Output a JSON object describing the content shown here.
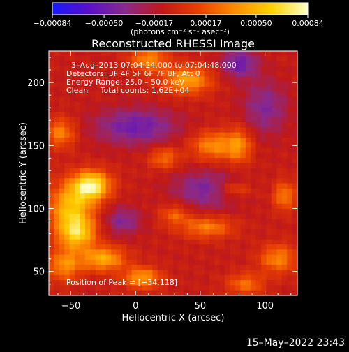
{
  "chart_data": {
    "type": "heatmap",
    "title": "Reconstructed RHESSI Image",
    "xlabel": "Heliocentric X (arcsec)",
    "ylabel": "Heliocentric Y (arcsec)",
    "xlim": [
      -67,
      125
    ],
    "ylim": [
      31,
      225
    ],
    "x_ticks": [
      -50,
      0,
      50,
      100
    ],
    "x_tick_labels": [
      "−50",
      "0",
      "50",
      "100"
    ],
    "y_ticks": [
      50,
      100,
      150,
      200
    ],
    "y_tick_labels": [
      "50",
      "100",
      "150",
      "200"
    ],
    "colorbar": {
      "range": [
        -0.00084,
        0.00084
      ],
      "ticks": [
        -0.00084,
        -0.0005,
        -0.00017,
        0.00017,
        0.0005,
        0.00084
      ],
      "tick_labels": [
        "−0.00084",
        "−0.00050",
        "−0.00017",
        "0.00017",
        "0.00050",
        "0.00084"
      ],
      "units": "(photons cm⁻² s⁻¹ asec⁻²)",
      "colors": [
        "#1818ff",
        "#5a10c8",
        "#8a2a8a",
        "#c01818",
        "#e84000",
        "#ff8c00",
        "#ffd000",
        "#ffffcc"
      ]
    },
    "annotations": [
      "3–Aug–2013 07:04:24.000 to 07:04:48.000",
      "Detectors: 3F 4F 5F 6F 7F 8F, Att 0",
      "Energy Range: 25.0 – 50.0 keV",
      "Clean     Total counts: 1.62E+04"
    ],
    "peak_label": "Position of Peak = [−34,118]",
    "peak": [
      -34,
      118
    ],
    "intensity_sources": [
      {
        "x": -34,
        "y": 118,
        "amp": 0.00084,
        "sx": 10,
        "sy": 8
      },
      {
        "x": -50,
        "y": 100,
        "amp": 0.00062,
        "sx": 12,
        "sy": 14
      },
      {
        "x": -45,
        "y": 80,
        "amp": 0.00058,
        "sx": 10,
        "sy": 9
      },
      {
        "x": -25,
        "y": 60,
        "amp": 0.00055,
        "sx": 12,
        "sy": 7
      },
      {
        "x": 5,
        "y": 45,
        "amp": 0.0005,
        "sx": 10,
        "sy": 6
      },
      {
        "x": -58,
        "y": 160,
        "amp": 0.00042,
        "sx": 8,
        "sy": 8
      },
      {
        "x": -55,
        "y": 55,
        "amp": 0.00045,
        "sx": 9,
        "sy": 9
      },
      {
        "x": 40,
        "y": 202,
        "amp": 0.00052,
        "sx": 13,
        "sy": 8
      },
      {
        "x": 10,
        "y": 218,
        "amp": 0.00045,
        "sx": 10,
        "sy": 7
      },
      {
        "x": 60,
        "y": 150,
        "amp": 0.00045,
        "sx": 12,
        "sy": 8
      },
      {
        "x": 80,
        "y": 150,
        "amp": 0.0004,
        "sx": 7,
        "sy": 10
      },
      {
        "x": 75,
        "y": 115,
        "amp": 0.0003,
        "sx": 10,
        "sy": 5
      },
      {
        "x": 55,
        "y": 85,
        "amp": 0.0004,
        "sx": 14,
        "sy": 6
      },
      {
        "x": 115,
        "y": 110,
        "amp": 0.0004,
        "sx": 6,
        "sy": 8
      },
      {
        "x": 110,
        "y": 60,
        "amp": 0.00042,
        "sx": 10,
        "sy": 8
      },
      {
        "x": 85,
        "y": 40,
        "amp": 0.00035,
        "sx": 10,
        "sy": 6
      },
      {
        "x": 22,
        "y": 140,
        "amp": 0.00035,
        "sx": 8,
        "sy": 6
      },
      {
        "x": 30,
        "y": 95,
        "amp": 0.0003,
        "sx": 8,
        "sy": 6
      },
      {
        "x": 80,
        "y": 215,
        "amp": -0.0004,
        "sx": 10,
        "sy": 8
      },
      {
        "x": 0,
        "y": 165,
        "amp": -0.0004,
        "sx": 22,
        "sy": 10
      },
      {
        "x": 55,
        "y": 115,
        "amp": -0.00035,
        "sx": 18,
        "sy": 10
      },
      {
        "x": 100,
        "y": 180,
        "amp": -0.0003,
        "sx": 12,
        "sy": 15
      },
      {
        "x": -10,
        "y": 90,
        "amp": -0.0003,
        "sx": 10,
        "sy": 8
      }
    ]
  },
  "footer": {
    "timestamp": "15–May–2022 23:43"
  }
}
